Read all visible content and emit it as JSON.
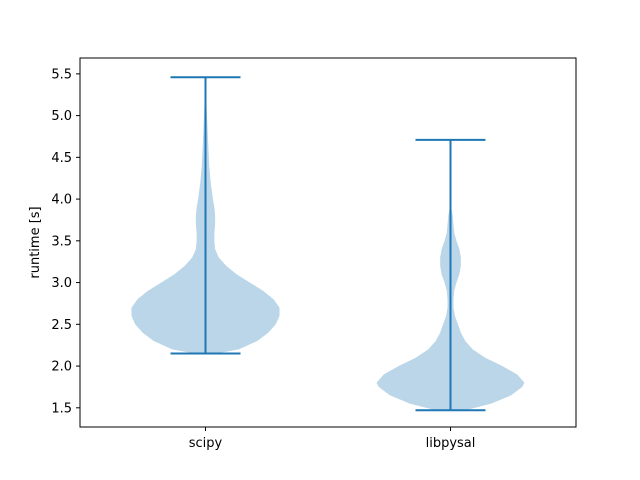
{
  "chart_data": {
    "type": "violin",
    "title": "",
    "xlabel": "",
    "ylabel": "runtime [s]",
    "ylim": [
      1.27,
      5.69
    ],
    "yticks": [
      1.5,
      2.0,
      2.5,
      3.0,
      3.5,
      4.0,
      4.5,
      5.0,
      5.5
    ],
    "ytick_labels": [
      "1.5",
      "2.0",
      "2.5",
      "3.0",
      "3.5",
      "4.0",
      "4.5",
      "5.0",
      "5.5"
    ],
    "grid": false,
    "colors": {
      "fill": "#1f77b4",
      "fill_alpha": 0.3,
      "line": "#1f77b4",
      "axes": "#000000"
    },
    "categories": [
      "scipy",
      "libpysal"
    ],
    "series": [
      {
        "category": "scipy",
        "min": 2.15,
        "max": 5.46,
        "density_profile": [
          [
            2.15,
            0.15
          ],
          [
            2.2,
            0.45
          ],
          [
            2.3,
            0.7
          ],
          [
            2.4,
            0.85
          ],
          [
            2.5,
            0.95
          ],
          [
            2.6,
            1.0
          ],
          [
            2.7,
            1.0
          ],
          [
            2.8,
            0.92
          ],
          [
            2.9,
            0.78
          ],
          [
            3.0,
            0.6
          ],
          [
            3.1,
            0.42
          ],
          [
            3.2,
            0.28
          ],
          [
            3.3,
            0.18
          ],
          [
            3.4,
            0.13
          ],
          [
            3.5,
            0.12
          ],
          [
            3.6,
            0.12
          ],
          [
            3.7,
            0.13
          ],
          [
            3.8,
            0.13
          ],
          [
            3.9,
            0.12
          ],
          [
            4.0,
            0.1
          ],
          [
            4.2,
            0.07
          ],
          [
            4.4,
            0.05
          ],
          [
            4.6,
            0.04
          ],
          [
            4.8,
            0.03
          ],
          [
            5.0,
            0.02
          ],
          [
            5.2,
            0.01
          ],
          [
            5.46,
            0.003
          ]
        ]
      },
      {
        "category": "libpysal",
        "min": 1.47,
        "max": 4.71,
        "density_profile": [
          [
            1.47,
            0.2
          ],
          [
            1.55,
            0.55
          ],
          [
            1.65,
            0.82
          ],
          [
            1.75,
            0.97
          ],
          [
            1.8,
            1.0
          ],
          [
            1.9,
            0.9
          ],
          [
            2.0,
            0.7
          ],
          [
            2.1,
            0.47
          ],
          [
            2.2,
            0.3
          ],
          [
            2.3,
            0.2
          ],
          [
            2.4,
            0.14
          ],
          [
            2.5,
            0.1
          ],
          [
            2.6,
            0.06
          ],
          [
            2.7,
            0.04
          ],
          [
            2.8,
            0.04
          ],
          [
            2.9,
            0.05
          ],
          [
            3.0,
            0.08
          ],
          [
            3.1,
            0.12
          ],
          [
            3.2,
            0.14
          ],
          [
            3.3,
            0.14
          ],
          [
            3.4,
            0.12
          ],
          [
            3.5,
            0.08
          ],
          [
            3.6,
            0.05
          ],
          [
            3.7,
            0.04
          ],
          [
            3.8,
            0.03
          ],
          [
            3.9,
            0.01
          ],
          [
            4.1,
            0.006
          ],
          [
            4.4,
            0.003
          ],
          [
            4.71,
            0.002
          ]
        ]
      }
    ]
  }
}
